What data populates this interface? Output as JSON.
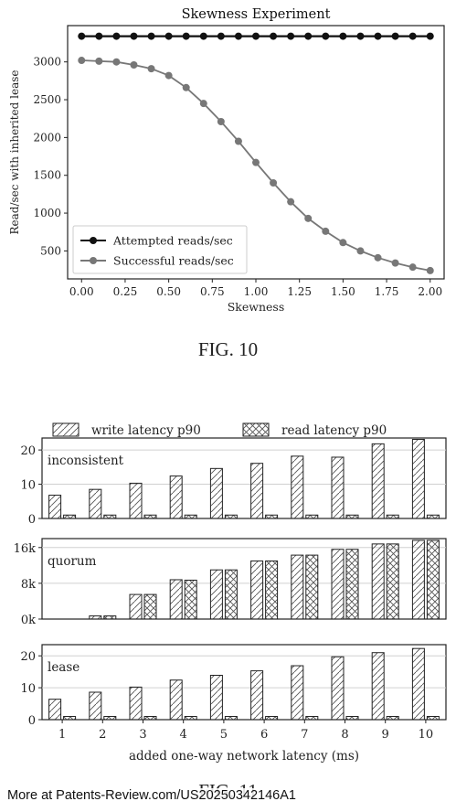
{
  "chart_data": [
    {
      "type": "line",
      "title": "Skewness Experiment",
      "xlabel": "Skewness",
      "ylabel": "Read/sec with inherited lease",
      "xlim": [
        -0.08,
        2.08
      ],
      "ylim": [
        130,
        3480
      ],
      "xticks": [
        0.0,
        0.25,
        0.5,
        0.75,
        1.0,
        1.25,
        1.5,
        1.75,
        2.0
      ],
      "xtick_labels": [
        "0.00",
        "0.25",
        "0.50",
        "0.75",
        "1.00",
        "1.25",
        "1.50",
        "1.75",
        "2.00"
      ],
      "yticks": [
        500,
        1000,
        1500,
        2000,
        2500,
        3000
      ],
      "ytick_labels": [
        "500",
        "1000",
        "1500",
        "2000",
        "2500",
        "3000"
      ],
      "grid": false,
      "legend": "bottom-left",
      "x": [
        0.0,
        0.1,
        0.2,
        0.3,
        0.4,
        0.5,
        0.6,
        0.7,
        0.8,
        0.9,
        1.0,
        1.1,
        1.2,
        1.3,
        1.4,
        1.5,
        1.6,
        1.7,
        1.8,
        1.9,
        2.0
      ],
      "series": [
        {
          "name": "Attempted reads/sec",
          "color": "#111111",
          "values": [
            3340,
            3340,
            3340,
            3340,
            3340,
            3340,
            3340,
            3340,
            3340,
            3340,
            3340,
            3340,
            3340,
            3340,
            3340,
            3340,
            3340,
            3340,
            3340,
            3340,
            3340
          ]
        },
        {
          "name": "Successful reads/sec",
          "color": "#777777",
          "values": [
            3020,
            3010,
            3000,
            2960,
            2910,
            2820,
            2660,
            2450,
            2210,
            1950,
            1670,
            1400,
            1150,
            930,
            760,
            610,
            500,
            410,
            340,
            285,
            240
          ]
        }
      ]
    },
    {
      "type": "bar",
      "xlabel": "added one-way network latency (ms)",
      "categories": [
        "1",
        "2",
        "3",
        "4",
        "5",
        "6",
        "7",
        "8",
        "9",
        "10"
      ],
      "legend": "top",
      "grid": true,
      "series_styles": [
        {
          "name": "write latency p90",
          "hatch": "diagonal"
        },
        {
          "name": "read latency p90",
          "hatch": "cross"
        }
      ],
      "panels": [
        {
          "label": "inconsistent",
          "ylim": [
            0,
            23.5
          ],
          "yticks": [
            0,
            10,
            20
          ],
          "ytick_labels": [
            "0",
            "10",
            "20"
          ],
          "write": [
            6.8,
            8.5,
            10.3,
            12.4,
            14.6,
            16.1,
            18.2,
            17.9,
            21.8,
            23.1
          ],
          "read": [
            1.0,
            1.0,
            1.0,
            1.0,
            1.0,
            1.0,
            1.0,
            1.0,
            1.0,
            1.0
          ]
        },
        {
          "label": "quorum",
          "ylim": [
            0,
            18000
          ],
          "yticks": [
            0,
            8000,
            16000
          ],
          "ytick_labels": [
            "0k",
            "8k",
            "16k"
          ],
          "write": [
            0,
            700,
            5500,
            8800,
            11000,
            13000,
            14300,
            15600,
            16800,
            17600
          ],
          "read": [
            0,
            700,
            5500,
            8700,
            11000,
            13000,
            14300,
            15600,
            16800,
            17600
          ]
        },
        {
          "label": "lease",
          "ylim": [
            0,
            23.5
          ],
          "yticks": [
            0,
            10,
            20
          ],
          "ytick_labels": [
            "0",
            "10",
            "20"
          ],
          "write": [
            6.4,
            8.6,
            10.2,
            12.4,
            13.9,
            15.3,
            16.9,
            19.7,
            21.0,
            22.3
          ],
          "read": [
            1.0,
            1.0,
            1.0,
            1.0,
            1.0,
            1.0,
            1.0,
            1.0,
            1.0,
            1.0
          ]
        }
      ]
    }
  ],
  "captions": {
    "fig10": "FIG. 10",
    "fig11": "FIG. 11"
  },
  "footer": "More at Patents-Review.com/US20250342146A1"
}
